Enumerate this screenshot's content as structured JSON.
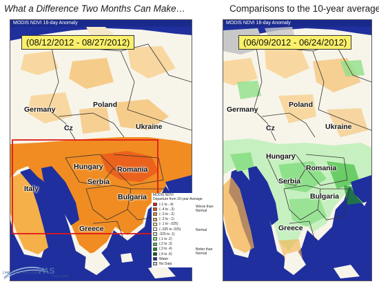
{
  "headline": {
    "left": "What a Difference Two Months Can Make…",
    "right": "Comparisons to the 10-year average"
  },
  "panels": {
    "left": {
      "header": "MODIS NDVI 16-day Anomaly",
      "date_range": "(08/12/2012 - 08/27/2012)"
    },
    "right": {
      "header": "MODIS NDVI 16-day Anomaly",
      "date_range": "(06/09/2012 - 06/24/2012)"
    }
  },
  "countries": [
    "Germany",
    "Poland",
    "Cz",
    "Ukraine",
    "Hungary",
    "Romania",
    "Serbia",
    "Italy",
    "Bulgaria",
    "Greece"
  ],
  "legend": {
    "title_line1": "MODIS NDVI",
    "title_line2": "Departure from 10-year Average",
    "entries": [
      {
        "label": "(-1 to -.4)",
        "color": "#d7191c"
      },
      {
        "label": "(-.4 to -.3)",
        "color": "#e8501a"
      },
      {
        "label": "(-.3 to -.2)",
        "color": "#f08c22"
      },
      {
        "label": "(-.2 to -.1)",
        "color": "#f5b04a"
      },
      {
        "label": "(-.1 to -.025)",
        "color": "#f8d8a0"
      },
      {
        "label": "(-.025 to .025)",
        "color": "#ffffff"
      },
      {
        "label": ".025 to .1)",
        "color": "#c7f0c0"
      },
      {
        "label": "(.1 to .2)",
        "color": "#8fe08a"
      },
      {
        "label": "(.2 to .3)",
        "color": "#4cc24a"
      },
      {
        "label": "(.3 to .4)",
        "color": "#1f8f2a"
      },
      {
        "label": "(.4 to .6)",
        "color": "#0b5a18"
      },
      {
        "label": "Water",
        "color": "#1f2f9e"
      },
      {
        "label": "No Data",
        "color": "#c8c8c8"
      }
    ],
    "categories": {
      "worse": "Worse than Normal",
      "normal": "Normal",
      "better": "Better than Normal"
    }
  },
  "logo": {
    "line1": "Linking U.S. Agriculture",
    "brand": "FAS",
    "line2": "to the World"
  },
  "colors": {
    "water": "#1f2f9e",
    "dry": "#f08c22",
    "normal": "#ffffff",
    "wet": "#4cc24a",
    "highlight_box": "#e01818"
  }
}
